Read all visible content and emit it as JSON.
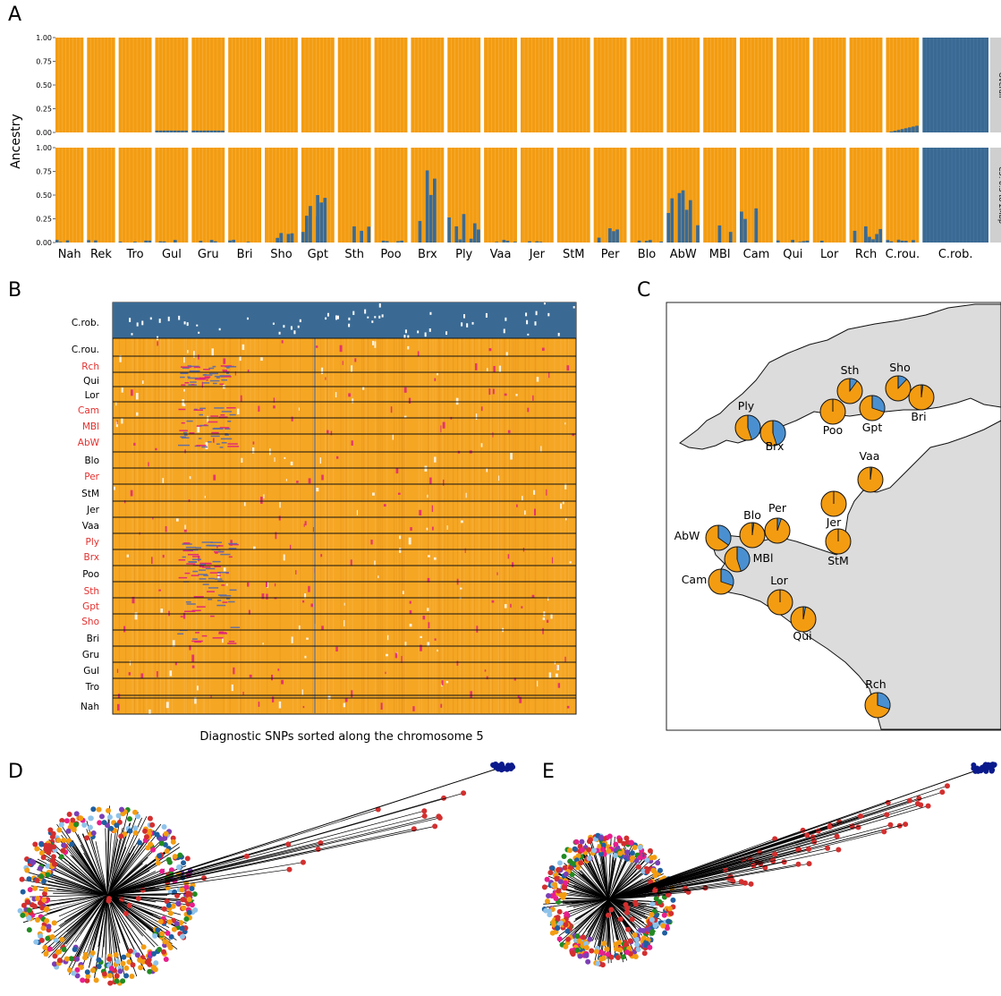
{
  "panels": {
    "A": {
      "letter": "A",
      "ylabel": "Ancestry",
      "facets": [
        "Overall",
        "C5: 0.5 to 2Mbp"
      ],
      "yticks": [
        "0.00",
        "0.25",
        "0.50",
        "0.75",
        "1.00"
      ],
      "populations": [
        "Nah",
        "Rek",
        "Tro",
        "Gul",
        "Gru",
        "Bri",
        "Sho",
        "Gpt",
        "Sth",
        "Poo",
        "Brx",
        "Ply",
        "Vaa",
        "Jer",
        "StM",
        "Per",
        "Blo",
        "AbW",
        "MBl",
        "Cam",
        "Qui",
        "Lor",
        "Rch",
        "C.rou.",
        "C.rob."
      ],
      "colors": {
        "orange": "#f39c12",
        "blue": "#3a6a94"
      }
    },
    "B": {
      "letter": "B",
      "rows": [
        {
          "label": "C.rob.",
          "red": false
        },
        {
          "label": "C.rou.",
          "red": false
        },
        {
          "label": "Rch",
          "red": true
        },
        {
          "label": "Qui",
          "red": false
        },
        {
          "label": "Lor",
          "red": false
        },
        {
          "label": "Cam",
          "red": true
        },
        {
          "label": "MBl",
          "red": true
        },
        {
          "label": "AbW",
          "red": true
        },
        {
          "label": "Blo",
          "red": false
        },
        {
          "label": "Per",
          "red": true
        },
        {
          "label": "StM",
          "red": false
        },
        {
          "label": "Jer",
          "red": false
        },
        {
          "label": "Vaa",
          "red": false
        },
        {
          "label": "Ply",
          "red": true
        },
        {
          "label": "Brx",
          "red": true
        },
        {
          "label": "Poo",
          "red": false
        },
        {
          "label": "Sth",
          "red": true
        },
        {
          "label": "Gpt",
          "red": true
        },
        {
          "label": "Sho",
          "red": true
        },
        {
          "label": "Bri",
          "red": false
        },
        {
          "label": "Gru",
          "red": false
        },
        {
          "label": "Gul",
          "red": false
        },
        {
          "label": "Tro",
          "red": false
        },
        {
          "label": "Nah",
          "red": false
        }
      ],
      "caption": "Diagnostic SNPs sorted along the chromosome 5"
    },
    "C": {
      "letter": "C",
      "sites": [
        {
          "label": "Ply",
          "blue_fraction": 0.45
        },
        {
          "label": "Brx",
          "blue_fraction": 0.45
        },
        {
          "label": "Poo",
          "blue_fraction": 0.0
        },
        {
          "label": "Sth",
          "blue_fraction": 0.1
        },
        {
          "label": "Gpt",
          "blue_fraction": 0.3
        },
        {
          "label": "Sho",
          "blue_fraction": 0.12
        },
        {
          "label": "Bri",
          "blue_fraction": 0.02
        },
        {
          "label": "Vaa",
          "blue_fraction": 0.02
        },
        {
          "label": "Jer",
          "blue_fraction": 0.0
        },
        {
          "label": "StM",
          "blue_fraction": 0.0
        },
        {
          "label": "Per",
          "blue_fraction": 0.05
        },
        {
          "label": "Blo",
          "blue_fraction": 0.02
        },
        {
          "label": "AbW",
          "blue_fraction": 0.35
        },
        {
          "label": "MBl",
          "blue_fraction": 0.45
        },
        {
          "label": "Cam",
          "blue_fraction": 0.3
        },
        {
          "label": "Lor",
          "blue_fraction": 0.0
        },
        {
          "label": "Qui",
          "blue_fraction": 0.03
        },
        {
          "label": "Rch",
          "blue_fraction": 0.3
        }
      ]
    },
    "D": {
      "letter": "D"
    },
    "E": {
      "letter": "E"
    }
  }
}
